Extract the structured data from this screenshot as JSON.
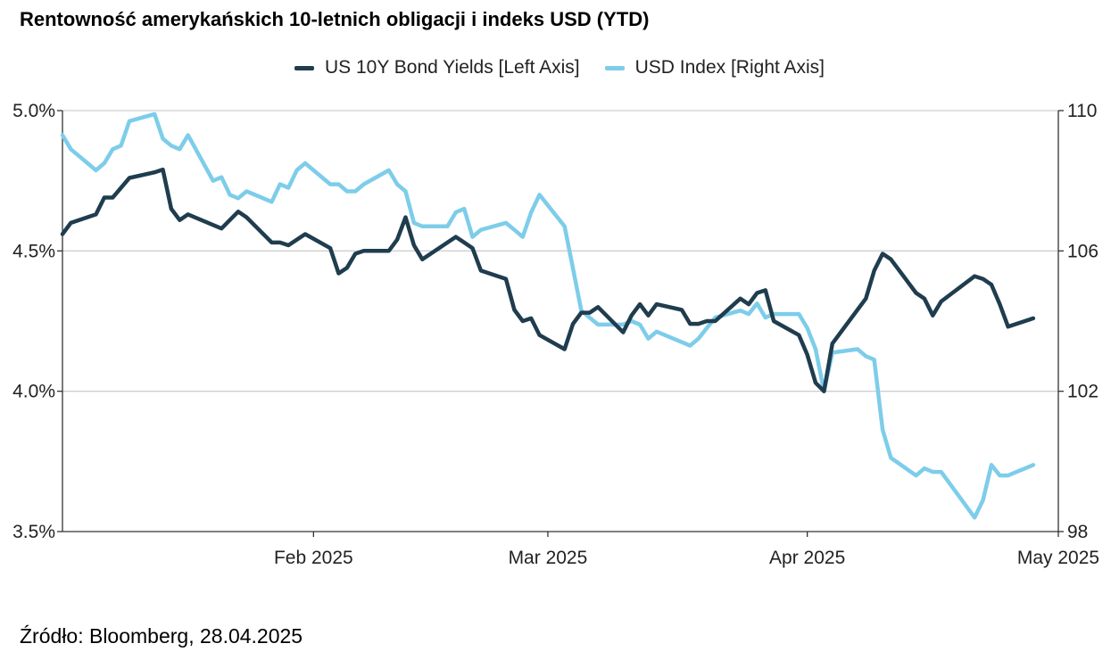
{
  "chart_data": {
    "type": "line",
    "title": "Rentowność amerykańskich 10-letnich obligacji i indeks USD (YTD)",
    "source": "Źródło: Bloomberg, 28.04.2025",
    "x_range": [
      "2025-01-02",
      "2025-05-01"
    ],
    "x_tick_labels": [
      {
        "label": "Feb 2025",
        "date": "2025-02-01"
      },
      {
        "label": "Mar 2025",
        "date": "2025-03-01"
      },
      {
        "label": "Apr 2025",
        "date": "2025-04-01"
      },
      {
        "label": "May 2025",
        "date": "2025-05-01"
      }
    ],
    "y_left": {
      "range": [
        3.5,
        5.0
      ],
      "ticks": [
        3.5,
        4.0,
        4.5,
        5.0
      ],
      "tick_labels": [
        "3.5%",
        "4.0%",
        "4.5%",
        "5.0%"
      ]
    },
    "y_right": {
      "range": [
        98,
        110
      ],
      "ticks": [
        98,
        102,
        106,
        110
      ],
      "tick_labels": [
        "98",
        "102",
        "106",
        "110"
      ]
    },
    "grid": "horizontal",
    "legend_position": "top-center",
    "series": [
      {
        "name": "US 10Y Bond Yields [Left Axis]",
        "axis": "left",
        "color": "#1f3d4e",
        "x": [
          "2025-01-02",
          "2025-01-03",
          "2025-01-06",
          "2025-01-07",
          "2025-01-08",
          "2025-01-10",
          "2025-01-13",
          "2025-01-14",
          "2025-01-15",
          "2025-01-16",
          "2025-01-17",
          "2025-01-21",
          "2025-01-22",
          "2025-01-23",
          "2025-01-24",
          "2025-01-27",
          "2025-01-28",
          "2025-01-29",
          "2025-01-30",
          "2025-01-31",
          "2025-02-03",
          "2025-02-04",
          "2025-02-05",
          "2025-02-06",
          "2025-02-07",
          "2025-02-10",
          "2025-02-11",
          "2025-02-12",
          "2025-02-13",
          "2025-02-14",
          "2025-02-18",
          "2025-02-19",
          "2025-02-20",
          "2025-02-21",
          "2025-02-24",
          "2025-02-25",
          "2025-02-26",
          "2025-02-27",
          "2025-02-28",
          "2025-03-03",
          "2025-03-04",
          "2025-03-05",
          "2025-03-06",
          "2025-03-07",
          "2025-03-10",
          "2025-03-11",
          "2025-03-12",
          "2025-03-13",
          "2025-03-14",
          "2025-03-17",
          "2025-03-18",
          "2025-03-19",
          "2025-03-20",
          "2025-03-21",
          "2025-03-24",
          "2025-03-25",
          "2025-03-26",
          "2025-03-27",
          "2025-03-28",
          "2025-03-31",
          "2025-04-01",
          "2025-04-02",
          "2025-04-03",
          "2025-04-04",
          "2025-04-07",
          "2025-04-08",
          "2025-04-09",
          "2025-04-10",
          "2025-04-11",
          "2025-04-14",
          "2025-04-15",
          "2025-04-16",
          "2025-04-17",
          "2025-04-21",
          "2025-04-22",
          "2025-04-23",
          "2025-04-24",
          "2025-04-25",
          "2025-04-28"
        ],
        "values": [
          4.56,
          4.6,
          4.63,
          4.69,
          4.69,
          4.76,
          4.78,
          4.79,
          4.65,
          4.61,
          4.63,
          4.58,
          4.61,
          4.64,
          4.62,
          4.53,
          4.53,
          4.52,
          4.54,
          4.56,
          4.51,
          4.42,
          4.44,
          4.49,
          4.5,
          4.5,
          4.54,
          4.62,
          4.52,
          4.47,
          4.55,
          4.53,
          4.51,
          4.43,
          4.4,
          4.29,
          4.25,
          4.26,
          4.2,
          4.15,
          4.24,
          4.28,
          4.28,
          4.3,
          4.21,
          4.27,
          4.31,
          4.27,
          4.31,
          4.29,
          4.24,
          4.24,
          4.25,
          4.25,
          4.33,
          4.31,
          4.35,
          4.36,
          4.25,
          4.2,
          4.13,
          4.03,
          4.0,
          4.17,
          4.29,
          4.33,
          4.43,
          4.49,
          4.47,
          4.35,
          4.33,
          4.27,
          4.32,
          4.41,
          4.4,
          4.38,
          4.31,
          4.23,
          4.26
        ]
      },
      {
        "name": "USD Index [Right Axis]",
        "axis": "right",
        "color": "#7dcdea",
        "x": [
          "2025-01-02",
          "2025-01-03",
          "2025-01-06",
          "2025-01-07",
          "2025-01-08",
          "2025-01-09",
          "2025-01-10",
          "2025-01-13",
          "2025-01-14",
          "2025-01-15",
          "2025-01-16",
          "2025-01-17",
          "2025-01-20",
          "2025-01-21",
          "2025-01-22",
          "2025-01-23",
          "2025-01-24",
          "2025-01-27",
          "2025-01-28",
          "2025-01-29",
          "2025-01-30",
          "2025-01-31",
          "2025-02-03",
          "2025-02-04",
          "2025-02-05",
          "2025-02-06",
          "2025-02-07",
          "2025-02-10",
          "2025-02-11",
          "2025-02-12",
          "2025-02-13",
          "2025-02-14",
          "2025-02-17",
          "2025-02-18",
          "2025-02-19",
          "2025-02-20",
          "2025-02-21",
          "2025-02-24",
          "2025-02-25",
          "2025-02-26",
          "2025-02-27",
          "2025-02-28",
          "2025-03-03",
          "2025-03-04",
          "2025-03-05",
          "2025-03-06",
          "2025-03-07",
          "2025-03-10",
          "2025-03-11",
          "2025-03-12",
          "2025-03-13",
          "2025-03-14",
          "2025-03-17",
          "2025-03-18",
          "2025-03-19",
          "2025-03-20",
          "2025-03-21",
          "2025-03-24",
          "2025-03-25",
          "2025-03-26",
          "2025-03-27",
          "2025-03-28",
          "2025-03-31",
          "2025-04-01",
          "2025-04-02",
          "2025-04-03",
          "2025-04-04",
          "2025-04-07",
          "2025-04-08",
          "2025-04-09",
          "2025-04-10",
          "2025-04-11",
          "2025-04-14",
          "2025-04-15",
          "2025-04-16",
          "2025-04-17",
          "2025-04-21",
          "2025-04-22",
          "2025-04-23",
          "2025-04-24",
          "2025-04-25",
          "2025-04-28"
        ],
        "values": [
          109.3,
          108.9,
          108.3,
          108.5,
          108.9,
          109.0,
          109.7,
          109.9,
          109.2,
          109.0,
          108.9,
          109.3,
          108.0,
          108.1,
          107.6,
          107.5,
          107.7,
          107.4,
          107.9,
          107.8,
          108.3,
          108.5,
          107.9,
          107.9,
          107.7,
          107.7,
          107.9,
          108.3,
          107.9,
          107.7,
          106.8,
          106.7,
          106.7,
          107.1,
          107.2,
          106.4,
          106.6,
          106.8,
          106.6,
          106.4,
          107.1,
          107.6,
          106.7,
          105.5,
          104.3,
          104.1,
          103.9,
          103.9,
          104.0,
          103.9,
          103.5,
          103.7,
          103.4,
          103.3,
          103.5,
          103.8,
          104.1,
          104.3,
          104.2,
          104.5,
          104.1,
          104.2,
          104.2,
          103.8,
          103.2,
          102.0,
          103.1,
          103.2,
          103.0,
          102.9,
          100.9,
          100.1,
          99.6,
          99.8,
          99.7,
          99.7,
          98.4,
          98.9,
          99.9,
          99.6,
          99.6,
          99.9
        ]
      }
    ]
  }
}
